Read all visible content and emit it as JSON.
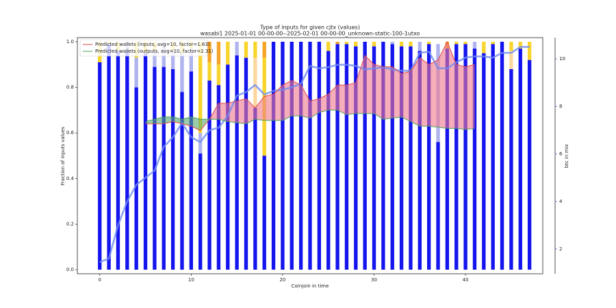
{
  "chart_data": {
    "type": "bar",
    "title": "Type of inputs for given cjtx (values)",
    "subtitle": "wasabi1 2025-01-01 00-00-00--2025-02-01 00-00-00_unknown-static-100-1utxo",
    "x_label": "Coinjoin in time",
    "y_label": "Fraction of inputs values",
    "y2_label": "btc in mix",
    "stacked": true,
    "legend": "upper left",
    "x": [
      0,
      1,
      2,
      3,
      4,
      5,
      6,
      7,
      8,
      9,
      10,
      11,
      12,
      13,
      14,
      15,
      16,
      17,
      18,
      19,
      20,
      21,
      22,
      23,
      24,
      25,
      26,
      27,
      28,
      29,
      30,
      31,
      32,
      33,
      34,
      35,
      36,
      37,
      38,
      39,
      40,
      41,
      42,
      43,
      44,
      45,
      46,
      47
    ],
    "xlim": [
      -2.45,
      48.45
    ],
    "xticks": [
      0,
      10,
      20,
      30,
      40
    ],
    "ylim": [
      -0.018,
      1.018
    ],
    "yticks": [
      {
        "value": 0,
        "label": "0.0"
      },
      0.2,
      0.4,
      0.6,
      0.8,
      {
        "value": 1,
        "label": "1.0"
      }
    ],
    "y2lim": [
      0.96,
      10.89
    ],
    "y2ticks": [
      2,
      4,
      6,
      8,
      10
    ],
    "y2_color": "#4a5ae8",
    "series": [
      {
        "type": "bar",
        "color": "#1414ee",
        "values": [
          0.91,
          0.99,
          0.96,
          0.96,
          0.8,
          0.95,
          0.89,
          0.89,
          0.88,
          0.78,
          0.87,
          0.51,
          0.83,
          0.81,
          0.9,
          0.94,
          0.93,
          0.71,
          0.5,
          1,
          1,
          1,
          1,
          1,
          1,
          0.96,
          0.99,
          0.99,
          0.98,
          1,
          0.98,
          1,
          0.99,
          0.98,
          0.98,
          0.96,
          0.99,
          0.56,
          0.97,
          0.99,
          0.99,
          0.97,
          0.95,
          0.99,
          1,
          0.88,
          0.97,
          0.92
        ]
      },
      {
        "type": "bar",
        "color": "#b0b4ee",
        "values": [
          0,
          0,
          0,
          0.04,
          0.13,
          0,
          0.07,
          0.11,
          0.08,
          0.17,
          0.1,
          0.09,
          0,
          0,
          0,
          0.06,
          0,
          0,
          0,
          0,
          0,
          0,
          0,
          0,
          0,
          0,
          0,
          0,
          0,
          0,
          0,
          0,
          0.01,
          0,
          0,
          0.04,
          0,
          0.43,
          0,
          0,
          0,
          0.03,
          0,
          0,
          0,
          0,
          0,
          0
        ]
      },
      {
        "type": "bar",
        "color": "#fcd8a0",
        "values": [
          0,
          0,
          0,
          0,
          0,
          0,
          0,
          0,
          0,
          0,
          0,
          0,
          0,
          0,
          0,
          0,
          0,
          0.22,
          0,
          0,
          0,
          0,
          0,
          0,
          0,
          0,
          0,
          0,
          0,
          0,
          0,
          0,
          0,
          0,
          0,
          0,
          0,
          0,
          0,
          0,
          0,
          0,
          0,
          0,
          0,
          0.08,
          0,
          0
        ]
      },
      {
        "type": "bar",
        "color": "#f8d42c",
        "values": [
          0.09,
          0.01,
          0.04,
          0,
          0.07,
          0.05,
          0.04,
          0,
          0.04,
          0.05,
          0.03,
          0.4,
          0.08,
          0.09,
          0.1,
          0,
          0.07,
          0.07,
          0.43,
          0,
          0,
          0,
          0,
          0,
          0,
          0.04,
          0,
          0.01,
          0.02,
          0,
          0.02,
          0,
          0,
          0.02,
          0.02,
          0,
          0.01,
          0,
          0,
          0.01,
          0.01,
          0,
          0.05,
          0.01,
          0,
          0.04,
          0.03,
          0.08
        ]
      },
      {
        "type": "bar",
        "color": "#f5a428",
        "values": [
          0,
          0,
          0,
          0,
          0,
          0,
          0,
          0,
          0,
          0,
          0,
          0,
          0.09,
          0.1,
          0,
          0,
          0,
          0,
          0.07,
          0,
          0,
          0,
          0,
          0,
          0,
          0,
          0.01,
          0,
          0,
          0,
          0,
          0,
          0,
          0,
          0,
          0,
          0,
          0,
          0.03,
          0,
          0,
          0,
          0,
          0,
          0,
          0,
          0,
          0
        ]
      },
      {
        "type": "line",
        "axis": "y2",
        "color": "#6f8cf0",
        "values": [
          1.45,
          1.6,
          3.0,
          4.0,
          4.7,
          5.0,
          5.3,
          6.3,
          6.7,
          7.3,
          6.7,
          6.5,
          7.0,
          7.1,
          7.6,
          8.45,
          8.6,
          8.9,
          8.5,
          8.65,
          8.7,
          8.8,
          8.95,
          9.7,
          9.6,
          9.65,
          9.75,
          9.75,
          9.7,
          9.55,
          9.6,
          9.65,
          9.55,
          9.5,
          9.5,
          10.25,
          10.3,
          9.6,
          9.6,
          9.85,
          10.05,
          10.1,
          10.1,
          10.05,
          10.25,
          10.25,
          10.5,
          10.5
        ]
      },
      {
        "type": "line",
        "name": "Predicted wallets (inputs, avg=10, factor=1.63)",
        "color": "#e04848",
        "fill_color": "#f07a8c",
        "values": [
          null,
          null,
          null,
          null,
          null,
          0.64,
          0.64,
          0.64,
          0.65,
          0.64,
          0.63,
          0.61,
          0.66,
          0.73,
          0.73,
          0.74,
          0.75,
          0.71,
          0.76,
          0.77,
          0.81,
          0.83,
          0.81,
          0.74,
          0.75,
          0.77,
          0.81,
          0.81,
          0.82,
          0.94,
          0.9,
          0.89,
          0.89,
          0.86,
          0.87,
          0.93,
          0.9,
          0.92,
          1.0,
          0.9,
          0.89,
          0.9,
          null,
          null,
          null,
          null,
          null,
          null
        ]
      },
      {
        "type": "line",
        "name": "Predicted wallets (outputs, avg=10, factor=2.31)",
        "color": "#4aa05a",
        "fill_color": "#5aa870",
        "values": [
          null,
          null,
          null,
          null,
          null,
          0.65,
          0.66,
          0.67,
          0.67,
          0.66,
          0.67,
          0.66,
          0.66,
          0.66,
          0.65,
          0.645,
          0.64,
          0.66,
          0.655,
          0.655,
          0.655,
          0.675,
          0.675,
          0.665,
          0.69,
          0.7,
          0.7,
          0.68,
          0.685,
          0.685,
          0.685,
          0.66,
          0.665,
          0.67,
          0.65,
          0.63,
          0.63,
          0.625,
          0.62,
          0.62,
          0.615,
          0.62,
          null,
          null,
          null,
          null,
          null,
          null
        ]
      }
    ]
  }
}
